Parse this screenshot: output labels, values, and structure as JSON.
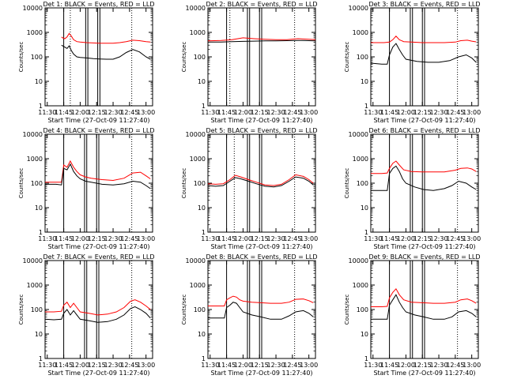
{
  "figure": {
    "xlabel": "Start Time (27-Oct-09 11:27:40)",
    "ylabel": "Counts/sec",
    "x_tick_labels": [
      "11:30",
      "11:45",
      "12:00",
      "12:15",
      "12:30",
      "12:45",
      "13:00"
    ],
    "y_tick_labels": [
      "1",
      "10",
      "100",
      "1000",
      "10000"
    ],
    "colors": {
      "events": "#000000",
      "lld": "#ff0000",
      "background": "#ffffff",
      "axis": "#000000"
    }
  },
  "chart_data": [
    {
      "type": "line",
      "title": "Det 1: BLACK = Events, RED = LLD",
      "xlim": [
        "11:28",
        "13:06"
      ],
      "ylim": [
        1,
        10000
      ],
      "yscale": "log",
      "solid_markers": [
        "11:45",
        "12:05",
        "12:07",
        "12:16",
        "12:18"
      ],
      "dotted_markers": [
        "11:51",
        "12:47"
      ],
      "series": [
        {
          "name": "Events",
          "color": "#000000",
          "x": [
            "11:43",
            "11:44",
            "11:46",
            "11:48",
            "11:50",
            "11:52",
            "11:54",
            "11:57",
            "12:00",
            "12:06",
            "12:12",
            "12:18",
            "12:24",
            "12:30",
            "12:36",
            "12:42",
            "12:48",
            "12:54",
            "13:00",
            "13:04"
          ],
          "y": [
            300,
            280,
            250,
            220,
            280,
            180,
            130,
            100,
            95,
            90,
            85,
            82,
            80,
            80,
            100,
            150,
            200,
            160,
            100,
            80
          ]
        },
        {
          "name": "LLD",
          "color": "#ff0000",
          "x": [
            "11:43",
            "11:44",
            "11:46",
            "11:48",
            "11:50",
            "11:52",
            "11:54",
            "11:57",
            "12:00",
            "12:06",
            "12:12",
            "12:18",
            "12:24",
            "12:30",
            "12:36",
            "12:42",
            "12:48",
            "12:54",
            "13:00",
            "13:04"
          ],
          "y": [
            650,
            600,
            550,
            650,
            900,
            700,
            500,
            420,
            400,
            380,
            370,
            360,
            360,
            360,
            380,
            420,
            480,
            460,
            420,
            400
          ]
        }
      ]
    },
    {
      "type": "line",
      "title": "Det 2: BLACK = Events, RED = LLD",
      "xlim": [
        "11:28",
        "13:06"
      ],
      "ylim": [
        1,
        10000
      ],
      "yscale": "log",
      "solid_markers": [
        "11:45",
        "12:04",
        "12:06",
        "12:15",
        "12:17"
      ],
      "dotted_markers": [
        "11:48",
        "12:47"
      ],
      "series": [
        {
          "name": "Events",
          "color": "#000000",
          "x": [
            "11:28",
            "11:40",
            "11:50",
            "12:00",
            "12:10",
            "12:20",
            "12:30",
            "12:40",
            "12:50",
            "13:00",
            "13:06"
          ],
          "y": [
            400,
            400,
            420,
            430,
            440,
            450,
            450,
            460,
            470,
            460,
            450
          ]
        },
        {
          "name": "LLD",
          "color": "#ff0000",
          "x": [
            "11:28",
            "11:40",
            "11:50",
            "12:00",
            "12:10",
            "12:20",
            "12:30",
            "12:40",
            "12:50",
            "13:00",
            "13:06"
          ],
          "y": [
            450,
            470,
            500,
            600,
            550,
            520,
            500,
            500,
            550,
            520,
            500
          ]
        }
      ]
    },
    {
      "type": "line",
      "title": "Det 3: BLACK = Events, RED = LLD",
      "xlim": [
        "11:28",
        "13:06"
      ],
      "ylim": [
        1,
        10000
      ],
      "yscale": "log",
      "solid_markers": [
        "11:45",
        "12:04",
        "12:06",
        "12:15",
        "12:17"
      ],
      "dotted_markers": [
        "12:47"
      ],
      "series": [
        {
          "name": "Events",
          "color": "#000000",
          "x": [
            "11:28",
            "11:38",
            "11:43",
            "11:45",
            "11:48",
            "11:51",
            "11:54",
            "11:57",
            "12:00",
            "12:10",
            "12:20",
            "12:30",
            "12:40",
            "12:48",
            "12:55",
            "13:00",
            "13:04"
          ],
          "y": [
            55,
            50,
            50,
            120,
            250,
            350,
            200,
            120,
            80,
            65,
            60,
            60,
            70,
            100,
            120,
            90,
            60
          ]
        },
        {
          "name": "LLD",
          "color": "#ff0000",
          "x": [
            "11:28",
            "11:40",
            "11:45",
            "11:48",
            "11:51",
            "11:54",
            "11:58",
            "12:05",
            "12:15",
            "12:25",
            "12:35",
            "12:45",
            "12:50",
            "12:56",
            "13:00",
            "13:04"
          ],
          "y": [
            380,
            380,
            400,
            500,
            700,
            500,
            420,
            400,
            380,
            380,
            380,
            400,
            460,
            480,
            440,
            410
          ]
        }
      ]
    },
    {
      "type": "line",
      "title": "Det 4: BLACK = Events, RED = LLD",
      "xlim": [
        "11:28",
        "13:06"
      ],
      "ylim": [
        1,
        10000
      ],
      "yscale": "log",
      "solid_markers": [
        "11:45",
        "12:04",
        "12:06",
        "12:15",
        "12:17"
      ],
      "dotted_markers": [
        "12:47"
      ],
      "series": [
        {
          "name": "Events",
          "color": "#000000",
          "x": [
            "11:28",
            "11:38",
            "11:43",
            "11:45",
            "11:48",
            "11:51",
            "11:54",
            "11:57",
            "12:00",
            "12:05",
            "12:10",
            "12:20",
            "12:30",
            "12:40",
            "12:48",
            "12:55",
            "13:00",
            "13:04"
          ],
          "y": [
            90,
            90,
            85,
            400,
            350,
            600,
            300,
            200,
            150,
            120,
            110,
            90,
            85,
            95,
            120,
            110,
            80,
            60
          ]
        },
        {
          "name": "LLD",
          "color": "#ff0000",
          "x": [
            "11:28",
            "11:38",
            "11:43",
            "11:45",
            "11:48",
            "11:51",
            "11:54",
            "11:57",
            "12:00",
            "12:05",
            "12:10",
            "12:20",
            "12:30",
            "12:40",
            "12:48",
            "12:55",
            "13:00",
            "13:04"
          ],
          "y": [
            110,
            110,
            110,
            550,
            450,
            800,
            450,
            300,
            220,
            180,
            160,
            140,
            130,
            160,
            260,
            280,
            200,
            150
          ]
        }
      ]
    },
    {
      "type": "line",
      "title": "Det 5: BLACK = Events, RED = LLD",
      "xlim": [
        "11:28",
        "13:06"
      ],
      "ylim": [
        1,
        10000
      ],
      "yscale": "log",
      "solid_markers": [
        "11:45",
        "12:04",
        "12:06",
        "12:15",
        "12:17"
      ],
      "dotted_markers": [
        "11:52",
        "12:47"
      ],
      "series": [
        {
          "name": "Events",
          "color": "#000000",
          "x": [
            "11:28",
            "11:35",
            "11:42",
            "11:48",
            "11:53",
            "11:58",
            "12:05",
            "12:12",
            "12:20",
            "12:28",
            "12:35",
            "12:42",
            "12:48",
            "12:55",
            "13:00",
            "13:04"
          ],
          "y": [
            80,
            75,
            80,
            120,
            170,
            150,
            120,
            95,
            75,
            70,
            80,
            120,
            180,
            160,
            120,
            85
          ]
        },
        {
          "name": "LLD",
          "color": "#ff0000",
          "x": [
            "11:28",
            "11:35",
            "11:42",
            "11:48",
            "11:53",
            "11:58",
            "12:05",
            "12:12",
            "12:20",
            "12:28",
            "12:35",
            "12:42",
            "12:48",
            "12:55",
            "13:00",
            "13:04"
          ],
          "y": [
            95,
            90,
            95,
            140,
            210,
            180,
            140,
            110,
            85,
            80,
            90,
            140,
            220,
            190,
            140,
            100
          ]
        }
      ]
    },
    {
      "type": "line",
      "title": "Det 6: BLACK = Events, RED = LLD",
      "xlim": [
        "11:28",
        "13:06"
      ],
      "ylim": [
        1,
        10000
      ],
      "yscale": "log",
      "solid_markers": [
        "11:45",
        "12:04",
        "12:06",
        "12:15",
        "12:17"
      ],
      "dotted_markers": [
        "12:47"
      ],
      "series": [
        {
          "name": "Events",
          "color": "#000000",
          "x": [
            "11:28",
            "11:38",
            "11:43",
            "11:45",
            "11:48",
            "11:51",
            "11:54",
            "11:57",
            "12:00",
            "12:08",
            "12:16",
            "12:25",
            "12:35",
            "12:42",
            "12:48",
            "12:55",
            "13:00",
            "13:04"
          ],
          "y": [
            50,
            50,
            50,
            250,
            400,
            500,
            300,
            150,
            100,
            70,
            55,
            50,
            60,
            80,
            120,
            100,
            70,
            55
          ]
        },
        {
          "name": "LLD",
          "color": "#ff0000",
          "x": [
            "11:28",
            "11:38",
            "11:43",
            "11:45",
            "11:48",
            "11:51",
            "11:54",
            "11:58",
            "12:05",
            "12:15",
            "12:25",
            "12:35",
            "12:45",
            "12:50",
            "12:56",
            "13:00",
            "13:04"
          ],
          "y": [
            250,
            250,
            260,
            400,
            650,
            800,
            550,
            350,
            300,
            290,
            290,
            290,
            340,
            400,
            420,
            380,
            300
          ]
        }
      ]
    },
    {
      "type": "line",
      "title": "Det 7: BLACK = Events, RED = LLD",
      "xlim": [
        "11:28",
        "13:06"
      ],
      "ylim": [
        1,
        10000
      ],
      "yscale": "log",
      "solid_markers": [
        "11:45",
        "12:04",
        "12:06",
        "12:15",
        "12:17"
      ],
      "dotted_markers": [
        "12:47"
      ],
      "series": [
        {
          "name": "Events",
          "color": "#000000",
          "x": [
            "11:28",
            "11:36",
            "11:43",
            "11:45",
            "11:48",
            "11:51",
            "11:54",
            "11:57",
            "12:00",
            "12:08",
            "12:16",
            "12:25",
            "12:33",
            "12:40",
            "12:46",
            "12:50",
            "12:55",
            "13:00",
            "13:04"
          ],
          "y": [
            40,
            38,
            40,
            70,
            100,
            60,
            90,
            60,
            40,
            35,
            30,
            32,
            40,
            60,
            110,
            130,
            100,
            70,
            45
          ]
        },
        {
          "name": "LLD",
          "color": "#ff0000",
          "x": [
            "11:28",
            "11:36",
            "11:43",
            "11:45",
            "11:48",
            "11:51",
            "11:54",
            "11:57",
            "12:00",
            "12:08",
            "12:16",
            "12:25",
            "12:33",
            "12:40",
            "12:46",
            "12:50",
            "12:55",
            "13:00",
            "13:04"
          ],
          "y": [
            80,
            80,
            85,
            150,
            200,
            120,
            180,
            120,
            80,
            70,
            60,
            65,
            80,
            120,
            220,
            250,
            200,
            140,
            100
          ]
        }
      ]
    },
    {
      "type": "line",
      "title": "Det 8: BLACK = Events, RED = LLD",
      "xlim": [
        "11:28",
        "13:06"
      ],
      "ylim": [
        1,
        10000
      ],
      "yscale": "log",
      "solid_markers": [
        "11:45",
        "12:04",
        "12:06",
        "12:15",
        "12:17"
      ],
      "dotted_markers": [
        "12:47"
      ],
      "series": [
        {
          "name": "Events",
          "color": "#000000",
          "x": [
            "11:28",
            "11:38",
            "11:43",
            "11:45",
            "11:48",
            "11:51",
            "11:54",
            "11:57",
            "12:00",
            "12:08",
            "12:16",
            "12:25",
            "12:35",
            "12:42",
            "12:48",
            "12:55",
            "13:00",
            "13:04"
          ],
          "y": [
            45,
            45,
            45,
            120,
            150,
            200,
            180,
            120,
            80,
            60,
            50,
            40,
            40,
            55,
            80,
            90,
            70,
            50
          ]
        },
        {
          "name": "LLD",
          "color": "#ff0000",
          "x": [
            "11:28",
            "11:38",
            "11:43",
            "11:45",
            "11:48",
            "11:51",
            "11:54",
            "11:57",
            "12:00",
            "12:08",
            "12:16",
            "12:25",
            "12:35",
            "12:42",
            "12:48",
            "12:55",
            "13:00",
            "13:04"
          ],
          "y": [
            140,
            140,
            140,
            250,
            300,
            350,
            320,
            250,
            220,
            200,
            190,
            180,
            180,
            200,
            260,
            270,
            230,
            190
          ]
        }
      ]
    },
    {
      "type": "line",
      "title": "Det 9: BLACK = Events, RED = LLD",
      "xlim": [
        "11:28",
        "13:06"
      ],
      "ylim": [
        1,
        10000
      ],
      "yscale": "log",
      "solid_markers": [
        "11:45",
        "12:04",
        "12:06",
        "12:15",
        "12:17"
      ],
      "dotted_markers": [
        "12:47"
      ],
      "series": [
        {
          "name": "Events",
          "color": "#000000",
          "x": [
            "11:28",
            "11:38",
            "11:43",
            "11:45",
            "11:48",
            "11:51",
            "11:54",
            "11:57",
            "12:00",
            "12:08",
            "12:16",
            "12:25",
            "12:35",
            "12:42",
            "12:48",
            "12:55",
            "13:00",
            "13:04"
          ],
          "y": [
            40,
            40,
            40,
            150,
            250,
            400,
            200,
            120,
            80,
            60,
            50,
            40,
            40,
            50,
            80,
            90,
            70,
            50
          ]
        },
        {
          "name": "LLD",
          "color": "#ff0000",
          "x": [
            "11:28",
            "11:38",
            "11:43",
            "11:45",
            "11:48",
            "11:51",
            "11:54",
            "11:58",
            "12:05",
            "12:15",
            "12:25",
            "12:35",
            "12:45",
            "12:50",
            "12:56",
            "13:00",
            "13:04"
          ],
          "y": [
            130,
            130,
            135,
            300,
            500,
            700,
            400,
            250,
            200,
            190,
            180,
            180,
            200,
            250,
            270,
            230,
            180
          ]
        }
      ]
    }
  ]
}
